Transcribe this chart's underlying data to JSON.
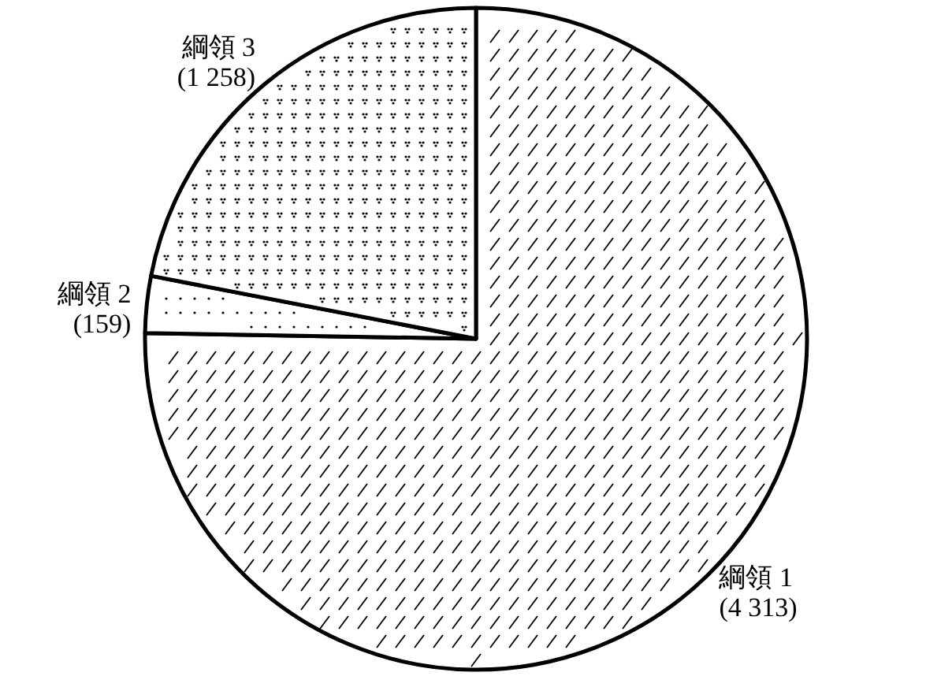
{
  "chart_data": {
    "type": "pie",
    "categories": [
      "綱領 1",
      "綱領 2",
      "綱領 3"
    ],
    "values": [
      4313,
      159,
      1258
    ],
    "value_labels": [
      "(4 313)",
      "(159)",
      "(1 258)"
    ],
    "colors": [
      "#ffffff",
      "#ffffff",
      "#ffffff"
    ]
  }
}
